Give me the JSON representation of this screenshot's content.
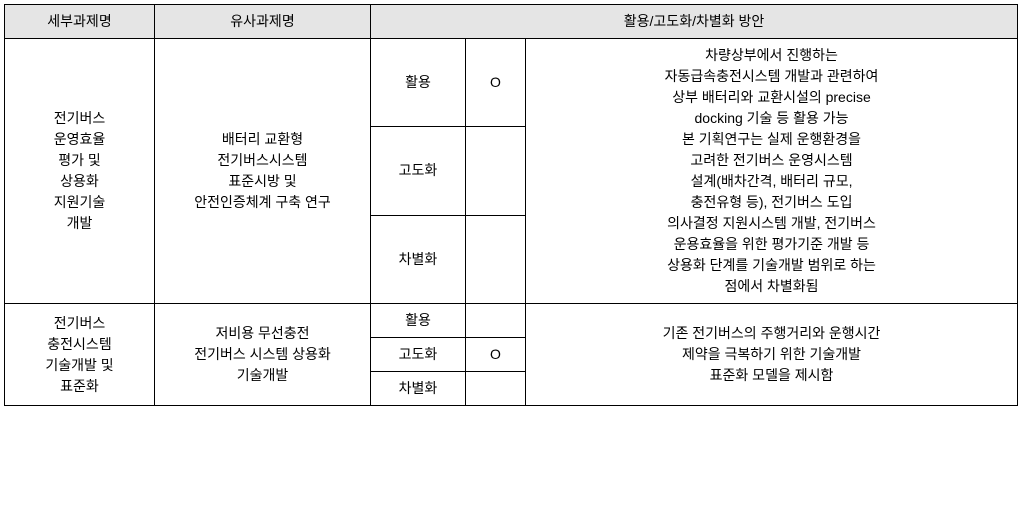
{
  "headers": {
    "col1": "세부과제명",
    "col2": "유사과제명",
    "col3": "활용/고도화/차별화 방안"
  },
  "rows": {
    "group1": {
      "detail": "전기버스\n운영효율\n평가 및\n상용화\n지원기술\n개발",
      "similar": "배터리 교환형\n전기버스시스템\n표준시방 및\n안전인증체계 구축 연구",
      "cat1": "활용",
      "mark1": "O",
      "cat2": "고도화",
      "mark2": "",
      "cat3": "차별화",
      "mark3": "",
      "plan": "차량상부에서 진행하는\n자동급속충전시스템 개발과 관련하여\n상부 배터리와 교환시설의 precise\ndocking 기술 등 활용 가능\n본 기획연구는 실제 운행환경을\n고려한 전기버스 운영시스템\n설계(배차간격, 배터리 규모,\n충전유형 등), 전기버스 도입\n의사결정 지원시스템 개발, 전기버스\n운용효율을 위한 평가기준 개발 등\n상용화 단계를 기술개발 범위로 하는\n점에서 차별화됨"
    },
    "group2": {
      "detail": "전기버스\n충전시스템\n기술개발 및\n표준화",
      "similar": "저비용 무선충전\n전기버스 시스템 상용화\n기술개발",
      "cat1": "활용",
      "mark1": "",
      "cat2": "고도화",
      "mark2": "O",
      "cat3": "차별화",
      "mark3": "",
      "plan": "기존 전기버스의 주행거리와 운행시간\n제약을 극복하기 위한 기술개발\n표준화 모델을 제시함"
    }
  }
}
